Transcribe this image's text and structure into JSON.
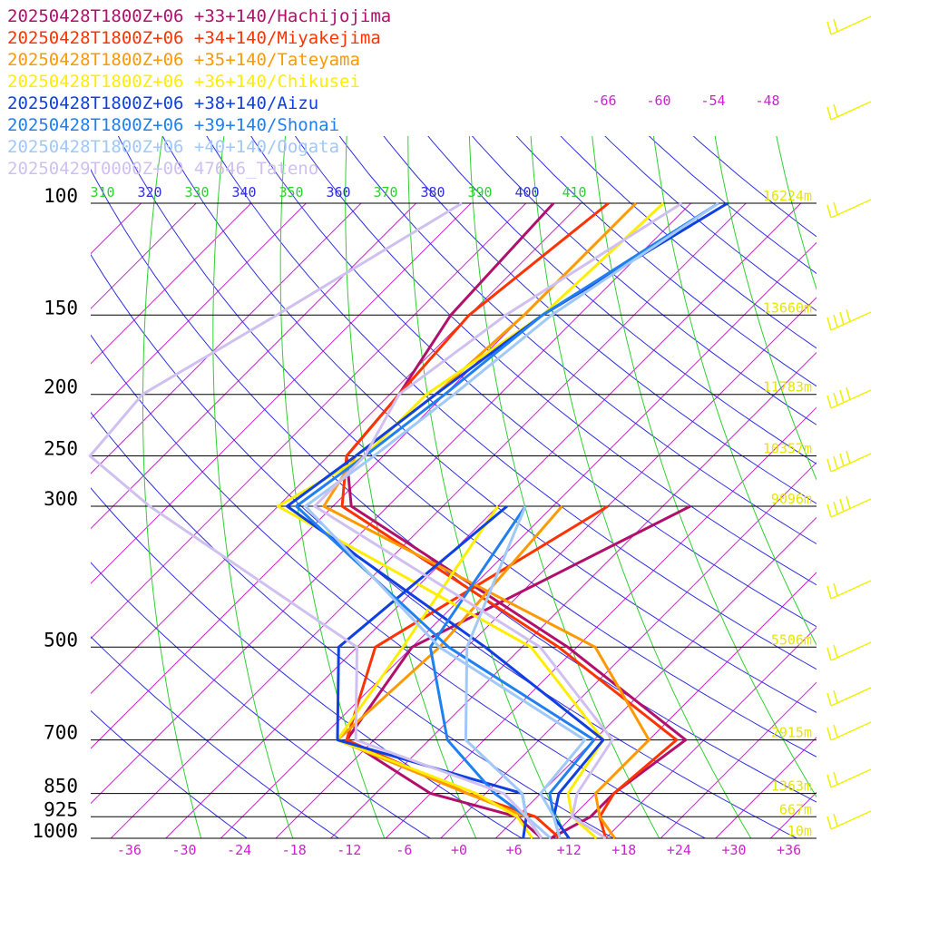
{
  "chart_data": {
    "type": "line",
    "title": "",
    "xlabel": "",
    "ylabel": "",
    "pressure_levels": [
      100,
      150,
      200,
      250,
      300,
      500,
      700,
      850,
      925,
      1000
    ],
    "pressure_labels": [
      "100",
      "150",
      "200",
      "250",
      "300",
      "500",
      "700",
      "850",
      "925",
      "1000"
    ],
    "heights": [
      "16224m",
      "13660m",
      "11783m",
      "10357m",
      "9096m",
      "5506m",
      "2915m",
      "1363m",
      "667m",
      "10m"
    ],
    "temperature_ticks": [
      "-36",
      "-30",
      "-24",
      "-18",
      "-12",
      "-6",
      "+0",
      "+6",
      "+12",
      "+18",
      "+24",
      "+30",
      "+36"
    ],
    "temperature_tick_values": [
      -36,
      -30,
      -24,
      -18,
      -12,
      -6,
      0,
      6,
      12,
      18,
      24,
      30,
      36
    ],
    "upper_temperature_labels": [
      "-66",
      "-60",
      "-54",
      "-48"
    ],
    "theta_labels": [
      "310",
      "320",
      "330",
      "340",
      "350",
      "360",
      "370",
      "380",
      "390",
      "400",
      "410"
    ],
    "xlim": [
      -40,
      40
    ],
    "pressure_scale": "log",
    "legend_placement": "top-left",
    "series": [
      {
        "name": "20250428T1800Z+06 +33+140/Hachijojima",
        "color": "#b0106c",
        "temperature": [
          [
            100,
            -59
          ],
          [
            150,
            -58
          ],
          [
            200,
            -55
          ],
          [
            250,
            -54
          ],
          [
            300,
            -48
          ],
          [
            500,
            -9
          ],
          [
            700,
            14
          ],
          [
            850,
            12
          ],
          [
            925,
            12
          ],
          [
            1000,
            10
          ]
        ],
        "dewpoint": [
          [
            300,
            -11
          ],
          [
            500,
            -26
          ],
          [
            700,
            -23
          ],
          [
            850,
            -8
          ],
          [
            925,
            4
          ],
          [
            1000,
            9
          ]
        ]
      },
      {
        "name": "20250428T1800Z+06 +34+140/Miyakejima",
        "color": "#ff3300",
        "temperature": [
          [
            100,
            -53
          ],
          [
            150,
            -56
          ],
          [
            200,
            -55
          ],
          [
            250,
            -54
          ],
          [
            300,
            -49
          ],
          [
            500,
            -10
          ],
          [
            700,
            13
          ],
          [
            850,
            12
          ],
          [
            925,
            13
          ],
          [
            1000,
            16
          ]
        ],
        "dewpoint": [
          [
            300,
            -20
          ],
          [
            500,
            -30
          ],
          [
            700,
            -23
          ],
          [
            850,
            -4
          ],
          [
            925,
            6
          ],
          [
            1000,
            11
          ]
        ]
      },
      {
        "name": "20250428T1800Z+06 +35+140/Tateyama",
        "color": "#ff9900",
        "temperature": [
          [
            100,
            -50
          ],
          [
            150,
            -50
          ],
          [
            200,
            -51
          ],
          [
            250,
            -53
          ],
          [
            300,
            -51
          ],
          [
            500,
            -6
          ],
          [
            700,
            10
          ],
          [
            850,
            10
          ],
          [
            925,
            13
          ],
          [
            1000,
            17
          ]
        ],
        "dewpoint": [
          [
            300,
            -25
          ],
          [
            500,
            -23
          ],
          [
            700,
            -24
          ],
          [
            850,
            -4
          ],
          [
            925,
            5
          ],
          [
            1000,
            9
          ]
        ]
      },
      {
        "name": "20250428T1800Z+06 +36+140/Chikusei",
        "color": "#ffee00",
        "temperature": [
          [
            100,
            -47
          ],
          [
            150,
            -48
          ],
          [
            200,
            -52
          ],
          [
            250,
            -52
          ],
          [
            300,
            -56
          ],
          [
            500,
            -13
          ],
          [
            700,
            5
          ],
          [
            850,
            7
          ],
          [
            925,
            10
          ],
          [
            1000,
            15
          ]
        ],
        "dewpoint": [
          [
            300,
            -32
          ],
          [
            500,
            -27
          ],
          [
            700,
            -24
          ],
          [
            850,
            -3
          ],
          [
            925,
            4
          ],
          [
            1000,
            8
          ]
        ]
      },
      {
        "name": "20250428T1800Z+06 +38+140/Aizu",
        "color": "#1040e0",
        "temperature": [
          [
            100,
            -40
          ],
          [
            150,
            -48
          ],
          [
            200,
            -51
          ],
          [
            250,
            -53
          ],
          [
            300,
            -55
          ],
          [
            500,
            -18
          ],
          [
            700,
            5
          ],
          [
            850,
            6
          ],
          [
            925,
            8
          ],
          [
            1000,
            12
          ]
        ],
        "dewpoint": [
          [
            300,
            -31
          ],
          [
            500,
            -34
          ],
          [
            700,
            -24
          ],
          [
            850,
            2
          ],
          [
            925,
            5
          ],
          [
            1000,
            7
          ]
        ]
      },
      {
        "name": "20250428T1800Z+06 +39+140/Shonai",
        "color": "#2080f0",
        "temperature": [
          [
            100,
            -41
          ],
          [
            150,
            -48
          ],
          [
            200,
            -50
          ],
          [
            250,
            -52
          ],
          [
            300,
            -54
          ],
          [
            500,
            -22
          ],
          [
            700,
            4
          ],
          [
            850,
            5
          ],
          [
            925,
            8
          ],
          [
            1000,
            11
          ]
        ],
        "dewpoint": [
          [
            300,
            -29
          ],
          [
            500,
            -24
          ],
          [
            700,
            -12
          ],
          [
            850,
            -1
          ],
          [
            925,
            5
          ],
          [
            1000,
            9
          ]
        ]
      },
      {
        "name": "20250428T1800Z+06 +40+140/Oogata",
        "color": "#a0c8f8",
        "temperature": [
          [
            100,
            -41
          ],
          [
            150,
            -47
          ],
          [
            200,
            -49
          ],
          [
            250,
            -51
          ],
          [
            300,
            -53
          ],
          [
            500,
            -23
          ],
          [
            700,
            3
          ],
          [
            850,
            4
          ],
          [
            925,
            8
          ],
          [
            1000,
            11
          ]
        ],
        "dewpoint": [
          [
            300,
            -29
          ],
          [
            500,
            -20
          ],
          [
            700,
            -10
          ],
          [
            850,
            2
          ],
          [
            925,
            5
          ],
          [
            1000,
            10
          ]
        ]
      },
      {
        "name": "20250429T0000Z+00 47646_Tateno",
        "color": "#d0c0f0",
        "temperature": [
          [
            100,
            -45
          ],
          [
            150,
            -52
          ],
          [
            200,
            -55
          ],
          [
            250,
            -52
          ],
          [
            300,
            -52
          ],
          [
            500,
            -12
          ],
          [
            700,
            6
          ],
          [
            850,
            8
          ],
          [
            925,
            10
          ],
          [
            1000,
            16
          ]
        ],
        "dewpoint": [
          [
            100,
            -69
          ],
          [
            150,
            -77
          ],
          [
            200,
            -83
          ],
          [
            250,
            -82
          ],
          [
            300,
            -70
          ],
          [
            500,
            -32
          ],
          [
            700,
            -22
          ],
          [
            850,
            0
          ],
          [
            925,
            5
          ],
          [
            1000,
            9
          ]
        ]
      }
    ]
  }
}
